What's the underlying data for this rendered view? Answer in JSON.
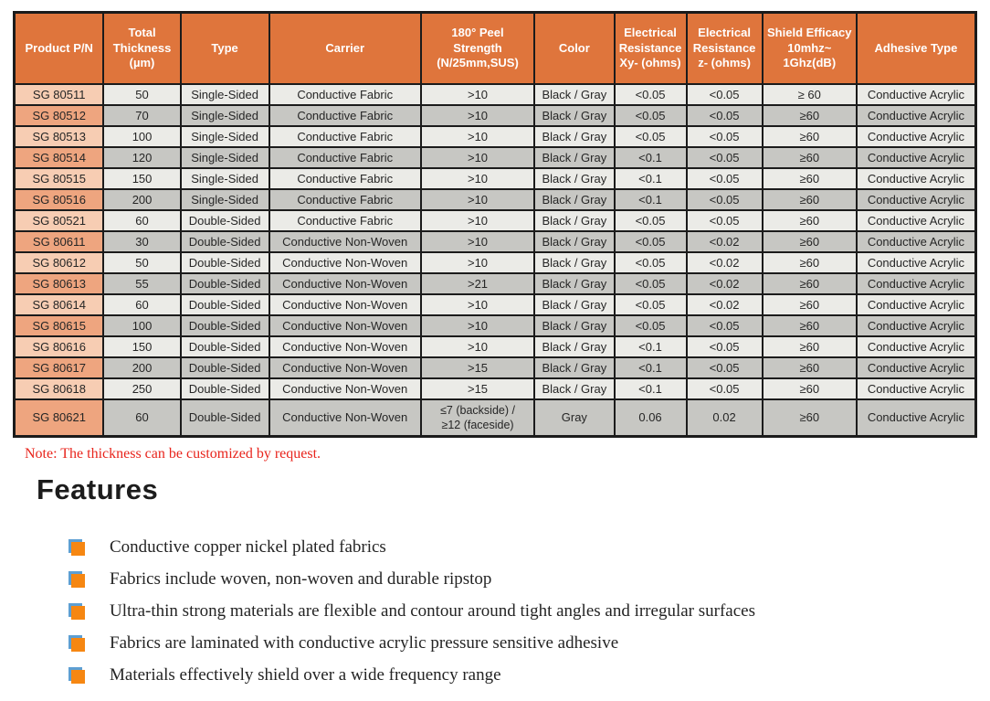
{
  "table": {
    "headers": [
      "Product P/N",
      "Total\nThickness\n(µm)",
      "Type",
      "Carrier",
      "180° Peel\nStrength\n(N/25mm,SUS)",
      "Color",
      "Electrical\nResistance\nXy- (ohms)",
      "Electrical\nResistance\nz- (ohms)",
      "Shield Efficacy\n10mhz~\n1Ghz(dB)",
      "Adhesive Type"
    ],
    "rows": [
      [
        "SG 80511",
        "50",
        "Single-Sided",
        "Conductive Fabric",
        ">10",
        "Black / Gray",
        "<0.05",
        "<0.05",
        "≥ 60",
        "Conductive Acrylic"
      ],
      [
        "SG 80512",
        "70",
        "Single-Sided",
        "Conductive Fabric",
        ">10",
        "Black / Gray",
        "<0.05",
        "<0.05",
        "≥60",
        "Conductive Acrylic"
      ],
      [
        "SG 80513",
        "100",
        "Single-Sided",
        "Conductive Fabric",
        ">10",
        "Black / Gray",
        "<0.05",
        "<0.05",
        "≥60",
        "Conductive Acrylic"
      ],
      [
        "SG 80514",
        "120",
        "Single-Sided",
        "Conductive Fabric",
        ">10",
        "Black / Gray",
        "<0.1",
        "<0.05",
        "≥60",
        "Conductive Acrylic"
      ],
      [
        "SG 80515",
        "150",
        "Single-Sided",
        "Conductive Fabric",
        ">10",
        "Black / Gray",
        "<0.1",
        "<0.05",
        "≥60",
        "Conductive Acrylic"
      ],
      [
        "SG 80516",
        "200",
        "Single-Sided",
        "Conductive Fabric",
        ">10",
        "Black / Gray",
        "<0.1",
        "<0.05",
        "≥60",
        "Conductive Acrylic"
      ],
      [
        "SG 80521",
        "60",
        "Double-Sided",
        "Conductive Fabric",
        ">10",
        "Black / Gray",
        "<0.05",
        "<0.05",
        "≥60",
        "Conductive Acrylic"
      ],
      [
        "SG 80611",
        "30",
        "Double-Sided",
        "Conductive Non-Woven",
        ">10",
        "Black / Gray",
        "<0.05",
        "<0.02",
        "≥60",
        "Conductive Acrylic"
      ],
      [
        "SG 80612",
        "50",
        "Double-Sided",
        "Conductive Non-Woven",
        ">10",
        "Black / Gray",
        "<0.05",
        "<0.02",
        "≥60",
        "Conductive Acrylic"
      ],
      [
        "SG 80613",
        "55",
        "Double-Sided",
        "Conductive Non-Woven",
        ">21",
        "Black / Gray",
        "<0.05",
        "<0.02",
        "≥60",
        "Conductive Acrylic"
      ],
      [
        "SG 80614",
        "60",
        "Double-Sided",
        "Conductive Non-Woven",
        ">10",
        "Black / Gray",
        "<0.05",
        "<0.02",
        "≥60",
        "Conductive Acrylic"
      ],
      [
        "SG 80615",
        "100",
        "Double-Sided",
        "Conductive Non-Woven",
        ">10",
        "Black / Gray",
        "<0.05",
        "<0.05",
        "≥60",
        "Conductive Acrylic"
      ],
      [
        "SG 80616",
        "150",
        "Double-Sided",
        "Conductive Non-Woven",
        ">10",
        "Black / Gray",
        "<0.1",
        "<0.05",
        "≥60",
        "Conductive Acrylic"
      ],
      [
        "SG 80617",
        "200",
        "Double-Sided",
        "Conductive Non-Woven",
        ">15",
        "Black / Gray",
        "<0.1",
        "<0.05",
        "≥60",
        "Conductive Acrylic"
      ],
      [
        "SG 80618",
        "250",
        "Double-Sided",
        "Conductive Non-Woven",
        ">15",
        "Black / Gray",
        "<0.1",
        "<0.05",
        "≥60",
        "Conductive Acrylic"
      ],
      [
        "SG 80621",
        "60",
        "Double-Sided",
        "Conductive Non-Woven",
        "≤7 (backside) /\n≥12 (faceside)",
        "Gray",
        "0.06",
        "0.02",
        "≥60",
        "Conductive Acrylic"
      ]
    ]
  },
  "note": "Note: The thickness can be customized by request.",
  "features": {
    "title": "Features",
    "items": [
      "Conductive copper nickel plated fabrics",
      "Fabrics include woven, non-woven and durable ripstop",
      "Ultra-thin strong materials are flexible and contour around tight angles and irregular surfaces",
      "Fabrics are laminated with conductive acrylic pressure sensitive adhesive",
      "Materials effectively shield over a wide frequency range"
    ]
  },
  "colors": {
    "header_bg": "#df753c",
    "header_text": "#ffffff",
    "product_light": "#f7cdb3",
    "product_dark": "#eea57f",
    "cell_light": "#ebebe7",
    "cell_dark": "#c7c7c3",
    "border": "#1b1b1b",
    "note_red": "#e8241c",
    "bullet_orange": "#f68712",
    "bullet_blue": "#5d9fd3"
  }
}
